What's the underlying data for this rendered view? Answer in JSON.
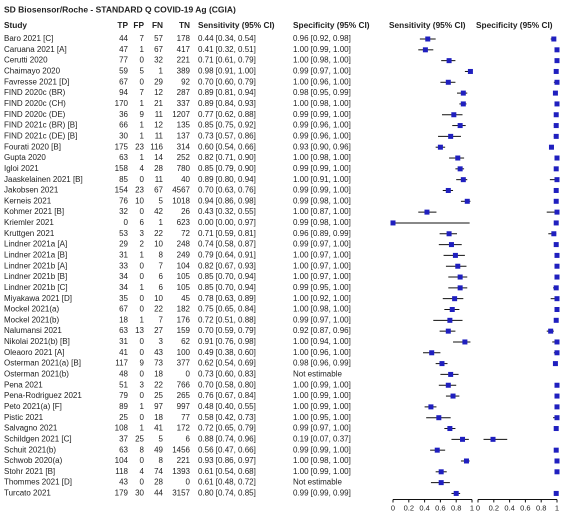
{
  "chart_data": {
    "type": "forest",
    "title": "SD Biosensor/Roche - STANDARD Q COVID-19 Ag (CGIA)",
    "columns": [
      "Study",
      "TP",
      "FP",
      "FN",
      "TN",
      "Sensitivity (95% CI)",
      "Specificity (95% CI)",
      "Sensitivity (95% CI)",
      "Specificity (95% CI)"
    ],
    "marker_color": "#1f1fbf",
    "xlim": [
      0,
      1
    ],
    "xticks": [
      0,
      0.2,
      0.4,
      0.6,
      0.8,
      1
    ],
    "rows": [
      {
        "study": "Baro 2021 [C]",
        "tp": 44,
        "fp": 7,
        "fn": 57,
        "tn": 178,
        "sensitivity": 0.44,
        "sensitivity_ci": [
          0.34,
          0.54
        ],
        "sensitivity_label": "0.44 [0.34, 0.54]",
        "specificity": 0.96,
        "specificity_ci": [
          0.92,
          0.98
        ],
        "specificity_label": "0.96 [0.92, 0.98]"
      },
      {
        "study": "Caruana 2021 [A]",
        "tp": 47,
        "fp": 1,
        "fn": 67,
        "tn": 417,
        "sensitivity": 0.41,
        "sensitivity_ci": [
          0.32,
          0.51
        ],
        "sensitivity_label": "0.41 [0.32, 0.51]",
        "specificity": 1.0,
        "specificity_ci": [
          0.99,
          1.0
        ],
        "specificity_label": "1.00 [0.99, 1.00]"
      },
      {
        "study": "Cerutti 2020",
        "tp": 77,
        "fp": 0,
        "fn": 32,
        "tn": 221,
        "sensitivity": 0.71,
        "sensitivity_ci": [
          0.61,
          0.79
        ],
        "sensitivity_label": "0.71 [0.61, 0.79]",
        "specificity": 1.0,
        "specificity_ci": [
          0.98,
          1.0
        ],
        "specificity_label": "1.00 [0.98, 1.00]"
      },
      {
        "study": "Chaimayo 2020",
        "tp": 59,
        "fp": 5,
        "fn": 1,
        "tn": 389,
        "sensitivity": 0.98,
        "sensitivity_ci": [
          0.91,
          1.0
        ],
        "sensitivity_label": "0.98 [0.91, 1.00]",
        "specificity": 0.99,
        "specificity_ci": [
          0.97,
          1.0
        ],
        "specificity_label": "0.99 [0.97, 1.00]"
      },
      {
        "study": "Favresse 2021 [D]",
        "tp": 67,
        "fp": 0,
        "fn": 29,
        "tn": 92,
        "sensitivity": 0.7,
        "sensitivity_ci": [
          0.6,
          0.79
        ],
        "sensitivity_label": "0.70 [0.60, 0.79]",
        "specificity": 1.0,
        "specificity_ci": [
          0.96,
          1.0
        ],
        "specificity_label": "1.00 [0.96, 1.00]"
      },
      {
        "study": "FIND 2020c (BR)",
        "tp": 94,
        "fp": 7,
        "fn": 12,
        "tn": 287,
        "sensitivity": 0.89,
        "sensitivity_ci": [
          0.81,
          0.94
        ],
        "sensitivity_label": "0.89 [0.81, 0.94]",
        "specificity": 0.98,
        "specificity_ci": [
          0.95,
          0.99
        ],
        "specificity_label": "0.98 [0.95, 0.99]"
      },
      {
        "study": "FIND 2020c (CH)",
        "tp": 170,
        "fp": 1,
        "fn": 21,
        "tn": 337,
        "sensitivity": 0.89,
        "sensitivity_ci": [
          0.84,
          0.93
        ],
        "sensitivity_label": "0.89 [0.84, 0.93]",
        "specificity": 1.0,
        "specificity_ci": [
          0.98,
          1.0
        ],
        "specificity_label": "1.00 [0.98, 1.00]"
      },
      {
        "study": "FIND 2020c (DE)",
        "tp": 36,
        "fp": 9,
        "fn": 11,
        "tn": 1207,
        "sensitivity": 0.77,
        "sensitivity_ci": [
          0.62,
          0.88
        ],
        "sensitivity_label": "0.77 [0.62, 0.88]",
        "specificity": 0.99,
        "specificity_ci": [
          0.99,
          1.0
        ],
        "specificity_label": "0.99 [0.99, 1.00]"
      },
      {
        "study": "FIND 2021c (BR) [B]",
        "tp": 66,
        "fp": 1,
        "fn": 12,
        "tn": 135,
        "sensitivity": 0.85,
        "sensitivity_ci": [
          0.75,
          0.92
        ],
        "sensitivity_label": "0.85 [0.75, 0.92]",
        "specificity": 0.99,
        "specificity_ci": [
          0.96,
          1.0
        ],
        "specificity_label": "0.99 [0.96, 1.00]"
      },
      {
        "study": "FIND 2021c (DE) [B]",
        "tp": 30,
        "fp": 1,
        "fn": 11,
        "tn": 137,
        "sensitivity": 0.73,
        "sensitivity_ci": [
          0.57,
          0.86
        ],
        "sensitivity_label": "0.73 [0.57, 0.86]",
        "specificity": 0.99,
        "specificity_ci": [
          0.96,
          1.0
        ],
        "specificity_label": "0.99 [0.96, 1.00]"
      },
      {
        "study": "Fourati 2020 [B]",
        "tp": 175,
        "fp": 23,
        "fn": 116,
        "tn": 314,
        "sensitivity": 0.6,
        "sensitivity_ci": [
          0.54,
          0.66
        ],
        "sensitivity_label": "0.60 [0.54, 0.66]",
        "specificity": 0.93,
        "specificity_ci": [
          0.9,
          0.96
        ],
        "specificity_label": "0.93 [0.90, 0.96]"
      },
      {
        "study": "Gupta 2020",
        "tp": 63,
        "fp": 1,
        "fn": 14,
        "tn": 252,
        "sensitivity": 0.82,
        "sensitivity_ci": [
          0.71,
          0.9
        ],
        "sensitivity_label": "0.82 [0.71, 0.90]",
        "specificity": 1.0,
        "specificity_ci": [
          0.98,
          1.0
        ],
        "specificity_label": "1.00 [0.98, 1.00]"
      },
      {
        "study": "Igloi 2021",
        "tp": 158,
        "fp": 4,
        "fn": 28,
        "tn": 780,
        "sensitivity": 0.85,
        "sensitivity_ci": [
          0.79,
          0.9
        ],
        "sensitivity_label": "0.85 [0.79, 0.90]",
        "specificity": 0.99,
        "specificity_ci": [
          0.99,
          1.0
        ],
        "specificity_label": "0.99 [0.99, 1.00]"
      },
      {
        "study": "Jaaskelainen 2021 [B]",
        "tp": 85,
        "fp": 0,
        "fn": 11,
        "tn": 40,
        "sensitivity": 0.89,
        "sensitivity_ci": [
          0.8,
          0.94
        ],
        "sensitivity_label": "0.89 [0.80, 0.94]",
        "specificity": 1.0,
        "specificity_ci": [
          0.91,
          1.0
        ],
        "specificity_label": "1.00 [0.91, 1.00]"
      },
      {
        "study": "Jakobsen 2021",
        "tp": 154,
        "fp": 23,
        "fn": 67,
        "tn": 4567,
        "sensitivity": 0.7,
        "sensitivity_ci": [
          0.63,
          0.76
        ],
        "sensitivity_label": "0.70 [0.63, 0.76]",
        "specificity": 0.99,
        "specificity_ci": [
          0.99,
          1.0
        ],
        "specificity_label": "0.99 [0.99, 1.00]"
      },
      {
        "study": "Kerneis 2021",
        "tp": 76,
        "fp": 10,
        "fn": 5,
        "tn": 1018,
        "sensitivity": 0.94,
        "sensitivity_ci": [
          0.86,
          0.98
        ],
        "sensitivity_label": "0.94 [0.86, 0.98]",
        "specificity": 0.99,
        "specificity_ci": [
          0.98,
          1.0
        ],
        "specificity_label": "0.99 [0.98, 1.00]"
      },
      {
        "study": "Kohmer 2021 [B]",
        "tp": 32,
        "fp": 0,
        "fn": 42,
        "tn": 26,
        "sensitivity": 0.43,
        "sensitivity_ci": [
          0.32,
          0.55
        ],
        "sensitivity_label": "0.43 [0.32, 0.55]",
        "specificity": 1.0,
        "specificity_ci": [
          0.87,
          1.0
        ],
        "specificity_label": "1.00 [0.87, 1.00]"
      },
      {
        "study": "Kriemler 2021",
        "tp": 0,
        "fp": 6,
        "fn": 1,
        "tn": 623,
        "sensitivity": 0.0,
        "sensitivity_ci": [
          0.0,
          0.97
        ],
        "sensitivity_label": "0.00 [0.00, 0.97]",
        "specificity": 0.99,
        "specificity_ci": [
          0.98,
          1.0
        ],
        "specificity_label": "0.99 [0.98, 1.00]"
      },
      {
        "study": "Kruttgen 2021",
        "tp": 53,
        "fp": 3,
        "fn": 22,
        "tn": 72,
        "sensitivity": 0.71,
        "sensitivity_ci": [
          0.59,
          0.81
        ],
        "sensitivity_label": "0.71 [0.59, 0.81]",
        "specificity": 0.96,
        "specificity_ci": [
          0.89,
          0.99
        ],
        "specificity_label": "0.96 [0.89, 0.99]"
      },
      {
        "study": "Lindner 2021a [A]",
        "tp": 29,
        "fp": 2,
        "fn": 10,
        "tn": 248,
        "sensitivity": 0.74,
        "sensitivity_ci": [
          0.58,
          0.87
        ],
        "sensitivity_label": "0.74 [0.58, 0.87]",
        "specificity": 0.99,
        "specificity_ci": [
          0.97,
          1.0
        ],
        "specificity_label": "0.99 [0.97, 1.00]"
      },
      {
        "study": "Lindner 2021a [B]",
        "tp": 31,
        "fp": 1,
        "fn": 8,
        "tn": 249,
        "sensitivity": 0.79,
        "sensitivity_ci": [
          0.64,
          0.91
        ],
        "sensitivity_label": "0.79 [0.64, 0.91]",
        "specificity": 1.0,
        "specificity_ci": [
          0.97,
          1.0
        ],
        "specificity_label": "1.00 [0.97, 1.00]"
      },
      {
        "study": "Lindner 2021b [A]",
        "tp": 33,
        "fp": 0,
        "fn": 7,
        "tn": 104,
        "sensitivity": 0.82,
        "sensitivity_ci": [
          0.67,
          0.93
        ],
        "sensitivity_label": "0.82 [0.67, 0.93]",
        "specificity": 1.0,
        "specificity_ci": [
          0.97,
          1.0
        ],
        "specificity_label": "1.00 [0.97, 1.00]"
      },
      {
        "study": "Lindner 2021b [B]",
        "tp": 34,
        "fp": 0,
        "fn": 6,
        "tn": 105,
        "sensitivity": 0.85,
        "sensitivity_ci": [
          0.7,
          0.94
        ],
        "sensitivity_label": "0.85 [0.70, 0.94]",
        "specificity": 1.0,
        "specificity_ci": [
          0.97,
          1.0
        ],
        "specificity_label": "1.00 [0.97, 1.00]"
      },
      {
        "study": "Lindner 2021b [C]",
        "tp": 34,
        "fp": 1,
        "fn": 6,
        "tn": 105,
        "sensitivity": 0.85,
        "sensitivity_ci": [
          0.7,
          0.94
        ],
        "sensitivity_label": "0.85 [0.70, 0.94]",
        "specificity": 0.99,
        "specificity_ci": [
          0.95,
          1.0
        ],
        "specificity_label": "0.99 [0.95, 1.00]"
      },
      {
        "study": "Miyakawa 2021 [D]",
        "tp": 35,
        "fp": 0,
        "fn": 10,
        "tn": 45,
        "sensitivity": 0.78,
        "sensitivity_ci": [
          0.63,
          0.89
        ],
        "sensitivity_label": "0.78 [0.63, 0.89]",
        "specificity": 1.0,
        "specificity_ci": [
          0.92,
          1.0
        ],
        "specificity_label": "1.00 [0.92, 1.00]"
      },
      {
        "study": "Mockel 2021(a)",
        "tp": 67,
        "fp": 0,
        "fn": 22,
        "tn": 182,
        "sensitivity": 0.75,
        "sensitivity_ci": [
          0.65,
          0.84
        ],
        "sensitivity_label": "0.75 [0.65, 0.84]",
        "specificity": 1.0,
        "specificity_ci": [
          0.98,
          1.0
        ],
        "specificity_label": "1.00 [0.98, 1.00]"
      },
      {
        "study": "Mockel 2021(b)",
        "tp": 18,
        "fp": 1,
        "fn": 7,
        "tn": 176,
        "sensitivity": 0.72,
        "sensitivity_ci": [
          0.51,
          0.88
        ],
        "sensitivity_label": "0.72 [0.51, 0.88]",
        "specificity": 0.99,
        "specificity_ci": [
          0.97,
          1.0
        ],
        "specificity_label": "0.99 [0.97, 1.00]"
      },
      {
        "study": "Nalumansi 2021",
        "tp": 63,
        "fp": 13,
        "fn": 27,
        "tn": 159,
        "sensitivity": 0.7,
        "sensitivity_ci": [
          0.59,
          0.79
        ],
        "sensitivity_label": "0.70 [0.59, 0.79]",
        "specificity": 0.92,
        "specificity_ci": [
          0.87,
          0.96
        ],
        "specificity_label": "0.92 [0.87, 0.96]"
      },
      {
        "study": "Nikolai 2021(b) [B]",
        "tp": 31,
        "fp": 0,
        "fn": 3,
        "tn": 62,
        "sensitivity": 0.91,
        "sensitivity_ci": [
          0.76,
          0.98
        ],
        "sensitivity_label": "0.91 [0.76, 0.98]",
        "specificity": 1.0,
        "specificity_ci": [
          0.94,
          1.0
        ],
        "specificity_label": "1.00 [0.94, 1.00]"
      },
      {
        "study": "Oleaoro 2021 [A]",
        "tp": 41,
        "fp": 0,
        "fn": 43,
        "tn": 100,
        "sensitivity": 0.49,
        "sensitivity_ci": [
          0.38,
          0.6
        ],
        "sensitivity_label": "0.49 [0.38, 0.60]",
        "specificity": 1.0,
        "specificity_ci": [
          0.96,
          1.0
        ],
        "specificity_label": "1.00 [0.96, 1.00]"
      },
      {
        "study": "Osterman 2021(a) [B]",
        "tp": 117,
        "fp": 9,
        "fn": 73,
        "tn": 377,
        "sensitivity": 0.62,
        "sensitivity_ci": [
          0.54,
          0.69
        ],
        "sensitivity_label": "0.62 [0.54, 0.69]",
        "specificity": 0.98,
        "specificity_ci": [
          0.96,
          0.99
        ],
        "specificity_label": "0.98 [0.96, 0.99]"
      },
      {
        "study": "Osterman 2021(b)",
        "tp": 48,
        "fp": 0,
        "fn": 18,
        "tn": 0,
        "sensitivity": 0.73,
        "sensitivity_ci": [
          0.6,
          0.83
        ],
        "sensitivity_label": "0.73 [0.60, 0.83]",
        "specificity": null,
        "specificity_ci": null,
        "specificity_label": "Not estimable"
      },
      {
        "study": "Pena 2021",
        "tp": 51,
        "fp": 3,
        "fn": 22,
        "tn": 766,
        "sensitivity": 0.7,
        "sensitivity_ci": [
          0.58,
          0.8
        ],
        "sensitivity_label": "0.70 [0.58, 0.80]",
        "specificity": 1.0,
        "specificity_ci": [
          0.99,
          1.0
        ],
        "specificity_label": "1.00 [0.99, 1.00]"
      },
      {
        "study": "Pena-Rodriguez 2021",
        "tp": 79,
        "fp": 0,
        "fn": 25,
        "tn": 265,
        "sensitivity": 0.76,
        "sensitivity_ci": [
          0.67,
          0.84
        ],
        "sensitivity_label": "0.76 [0.67, 0.84]",
        "specificity": 1.0,
        "specificity_ci": [
          0.99,
          1.0
        ],
        "specificity_label": "1.00 [0.99, 1.00]"
      },
      {
        "study": "Peto 2021(a) [F]",
        "tp": 89,
        "fp": 1,
        "fn": 97,
        "tn": 997,
        "sensitivity": 0.48,
        "sensitivity_ci": [
          0.4,
          0.55
        ],
        "sensitivity_label": "0.48 [0.40, 0.55]",
        "specificity": 1.0,
        "specificity_ci": [
          0.99,
          1.0
        ],
        "specificity_label": "1.00 [0.99, 1.00]"
      },
      {
        "study": "Pistic 2021",
        "tp": 25,
        "fp": 0,
        "fn": 18,
        "tn": 77,
        "sensitivity": 0.58,
        "sensitivity_ci": [
          0.42,
          0.73
        ],
        "sensitivity_label": "0.58 [0.42, 0.73]",
        "specificity": 1.0,
        "specificity_ci": [
          0.95,
          1.0
        ],
        "specificity_label": "1.00 [0.95, 1.00]"
      },
      {
        "study": "Salvagno 2021",
        "tp": 108,
        "fp": 1,
        "fn": 41,
        "tn": 172,
        "sensitivity": 0.72,
        "sensitivity_ci": [
          0.65,
          0.79
        ],
        "sensitivity_label": "0.72 [0.65, 0.79]",
        "specificity": 0.99,
        "specificity_ci": [
          0.97,
          1.0
        ],
        "specificity_label": "0.99 [0.97, 1.00]"
      },
      {
        "study": "Schildgen 2021 [C]",
        "tp": 37,
        "fp": 25,
        "fn": 5,
        "tn": 6,
        "sensitivity": 0.88,
        "sensitivity_ci": [
          0.74,
          0.96
        ],
        "sensitivity_label": "0.88 [0.74, 0.96]",
        "specificity": 0.19,
        "specificity_ci": [
          0.07,
          0.37
        ],
        "specificity_label": "0.19 [0.07, 0.37]"
      },
      {
        "study": "Schuit 2021(b)",
        "tp": 63,
        "fp": 8,
        "fn": 49,
        "tn": 1456,
        "sensitivity": 0.56,
        "sensitivity_ci": [
          0.47,
          0.66
        ],
        "sensitivity_label": "0.56 [0.47, 0.66]",
        "specificity": 0.99,
        "specificity_ci": [
          0.99,
          1.0
        ],
        "specificity_label": "0.99 [0.99, 1.00]"
      },
      {
        "study": "Schwob 2020(a)",
        "tp": 104,
        "fp": 0,
        "fn": 8,
        "tn": 221,
        "sensitivity": 0.93,
        "sensitivity_ci": [
          0.86,
          0.97
        ],
        "sensitivity_label": "0.93 [0.86, 0.97]",
        "specificity": 1.0,
        "specificity_ci": [
          0.98,
          1.0
        ],
        "specificity_label": "1.00 [0.98, 1.00]"
      },
      {
        "study": "Stohr 2021 [B]",
        "tp": 118,
        "fp": 4,
        "fn": 74,
        "tn": 1393,
        "sensitivity": 0.61,
        "sensitivity_ci": [
          0.54,
          0.68
        ],
        "sensitivity_label": "0.61 [0.54, 0.68]",
        "specificity": 1.0,
        "specificity_ci": [
          0.99,
          1.0
        ],
        "specificity_label": "1.00 [0.99, 1.00]"
      },
      {
        "study": "Thommes 2021 [D]",
        "tp": 43,
        "fp": 0,
        "fn": 28,
        "tn": 0,
        "sensitivity": 0.61,
        "sensitivity_ci": [
          0.48,
          0.72
        ],
        "sensitivity_label": "0.61 [0.48, 0.72]",
        "specificity": null,
        "specificity_ci": null,
        "specificity_label": "Not estimable"
      },
      {
        "study": "Turcato 2021",
        "tp": 179,
        "fp": 30,
        "fn": 44,
        "tn": 3157,
        "sensitivity": 0.8,
        "sensitivity_ci": [
          0.74,
          0.85
        ],
        "sensitivity_label": "0.80 [0.74, 0.85]",
        "specificity": 0.99,
        "specificity_ci": [
          0.99,
          0.99
        ],
        "specificity_label": "0.99 [0.99, 0.99]"
      }
    ]
  }
}
